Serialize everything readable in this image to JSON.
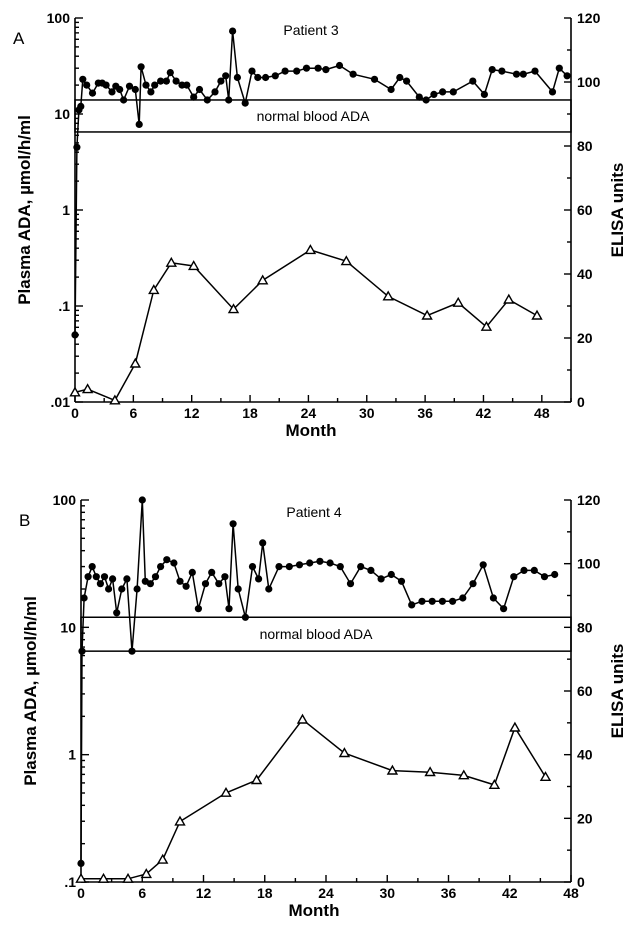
{
  "chart_data": [
    {
      "type": "line",
      "panel": "A",
      "annotation": "Patient   3",
      "band_label": "normal blood ADA",
      "band": [
        6.5,
        14
      ],
      "xlabel": "Month",
      "ylabel": "Plasma ADA, µmol/h/ml",
      "y2label": "ELISA units",
      "xlim": [
        0,
        51
      ],
      "xticks": [
        0,
        6,
        12,
        18,
        24,
        30,
        36,
        42,
        48
      ],
      "ylim": [
        0.01,
        100
      ],
      "yscale": "log",
      "yticks": [
        {
          "v": 0.01,
          "label": ".01"
        },
        {
          "v": 0.1,
          "label": ".1"
        },
        {
          "v": 1,
          "label": "1"
        },
        {
          "v": 10,
          "label": "10"
        },
        {
          "v": 100,
          "label": "100"
        }
      ],
      "y2lim": [
        0,
        120
      ],
      "y2ticks": [
        0,
        20,
        40,
        60,
        80,
        100,
        120
      ],
      "series": [
        {
          "marker": "circle",
          "axis": "left",
          "x": [
            0,
            0.2,
            0.4,
            0.6,
            0.8,
            1.2,
            1.8,
            2.4,
            2.8,
            3.2,
            3.8,
            4.2,
            4.6,
            5,
            5.6,
            6.2,
            6.6,
            6.8,
            7.3,
            7.8,
            8.2,
            8.8,
            9.4,
            9.8,
            10.4,
            11,
            11.5,
            12.2,
            12.8,
            13.6,
            14.4,
            15,
            15.5,
            15.8,
            16.2,
            16.7,
            17.5,
            18.2,
            18.8,
            19.6,
            20.6,
            21.6,
            22.8,
            23.8,
            25,
            25.8,
            27.2,
            28.6,
            30.8,
            32.5,
            33.4,
            34.1,
            35.4,
            36.1,
            36.9,
            37.8,
            38.9,
            40.9,
            42.1,
            42.9,
            43.9,
            45.4,
            46.1,
            47.3,
            49.1,
            49.8,
            50.6
          ],
          "y": [
            0.05,
            4.5,
            11,
            12,
            23,
            20,
            16.5,
            21,
            21,
            20,
            17,
            19.5,
            18,
            14,
            19.5,
            18,
            7.8,
            31,
            20,
            17,
            20,
            22,
            22,
            27,
            22,
            20,
            20,
            15,
            18,
            14,
            17,
            22,
            25,
            14,
            73,
            24,
            13,
            28,
            24,
            24,
            25,
            28,
            28,
            30,
            30,
            29,
            32,
            26,
            23,
            18,
            24,
            22,
            15,
            14,
            16,
            17,
            17,
            22,
            16,
            29,
            28,
            26,
            26,
            28,
            17,
            30,
            25
          ]
        },
        {
          "marker": "triangle",
          "axis": "right",
          "x": [
            0,
            1.3,
            4.1,
            6.2,
            8.1,
            9.9,
            12.2,
            16.3,
            19.3,
            24.2,
            27.9,
            32.2,
            36.2,
            39.4,
            42.3,
            44.6,
            47.5
          ],
          "y": [
            3,
            4,
            0.5,
            12,
            35,
            43.5,
            42.5,
            29,
            38,
            47.5,
            44,
            33,
            27,
            31,
            23.5,
            32,
            27
          ]
        }
      ]
    },
    {
      "type": "line",
      "panel": "B",
      "annotation": "Patient   4",
      "band_label": "normal blood ADA",
      "band": [
        6.5,
        12
      ],
      "xlabel": "Month",
      "ylabel": "Plasma ADA, µmol/h/ml",
      "y2label": "ELISA units",
      "xlim": [
        0,
        48
      ],
      "xticks": [
        0,
        6,
        12,
        18,
        24,
        30,
        36,
        42,
        48
      ],
      "ylim": [
        0.1,
        100
      ],
      "yscale": "log",
      "yticks": [
        {
          "v": 0.1,
          "label": ".1"
        },
        {
          "v": 1,
          "label": "1"
        },
        {
          "v": 10,
          "label": "10"
        },
        {
          "v": 100,
          "label": "100"
        }
      ],
      "y2lim": [
        0,
        120
      ],
      "y2ticks": [
        0,
        20,
        40,
        60,
        80,
        100,
        120
      ],
      "series": [
        {
          "marker": "circle",
          "axis": "left",
          "x": [
            0,
            0.1,
            0.3,
            0.7,
            1.1,
            1.5,
            1.9,
            2.3,
            2.7,
            3.1,
            3.5,
            4,
            4.5,
            5,
            5.5,
            6,
            6.3,
            6.8,
            7.3,
            7.8,
            8.4,
            9.1,
            9.7,
            10.3,
            10.9,
            11.5,
            12.2,
            12.8,
            13.5,
            14.1,
            14.5,
            14.9,
            15.4,
            16.1,
            16.8,
            17.4,
            17.8,
            18.4,
            19.4,
            20.4,
            21.4,
            22.4,
            23.4,
            24.4,
            25.4,
            26.4,
            27.4,
            28.4,
            29.4,
            30.4,
            31.4,
            32.4,
            33.4,
            34.4,
            35.4,
            36.4,
            37.4,
            38.4,
            39.4,
            40.4,
            41.4,
            42.4,
            43.4,
            44.4,
            45.4,
            46.4
          ],
          "y": [
            0.14,
            6.5,
            17,
            25,
            30,
            25,
            22,
            25,
            20,
            24,
            13,
            20,
            24,
            6.5,
            20,
            100,
            23,
            22,
            25,
            30,
            34,
            32,
            23,
            21,
            27,
            14,
            22,
            27,
            22,
            25,
            14,
            65,
            20,
            12,
            30,
            24,
            46,
            20,
            30,
            30,
            31,
            32,
            33,
            32,
            30,
            22,
            30,
            28,
            24,
            26,
            23,
            15,
            16,
            16,
            16,
            16,
            17,
            22,
            31,
            17,
            14,
            25,
            28,
            28,
            25,
            26
          ]
        },
        {
          "marker": "triangle",
          "axis": "right",
          "x": [
            0,
            2.2,
            4.6,
            6.4,
            8,
            9.7,
            14.2,
            17.2,
            21.7,
            25.8,
            30.5,
            34.2,
            37.5,
            40.5,
            42.5,
            45.5
          ],
          "y": [
            1,
            1,
            1,
            2.5,
            7,
            19,
            28,
            32,
            51,
            40.5,
            35,
            34.5,
            33.5,
            30.5,
            48.5,
            33
          ]
        }
      ]
    }
  ]
}
